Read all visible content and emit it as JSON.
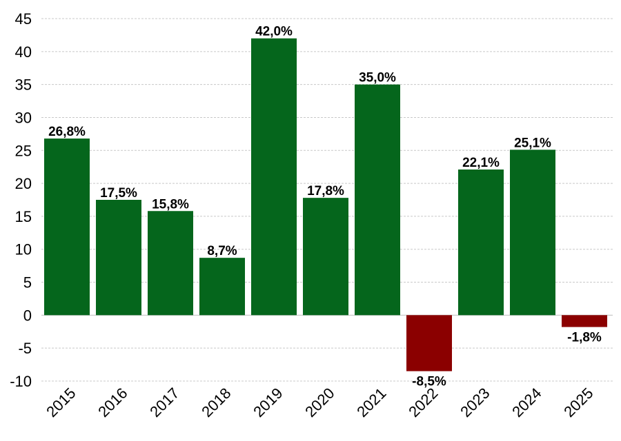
{
  "chart_data": {
    "type": "bar",
    "categories": [
      "2015",
      "2016",
      "2017",
      "2018",
      "2019",
      "2020",
      "2021",
      "2022",
      "2023",
      "2024",
      "2025"
    ],
    "values": [
      26.8,
      17.5,
      15.8,
      8.7,
      42.0,
      17.8,
      35.0,
      -8.5,
      22.1,
      25.1,
      -1.8
    ],
    "data_labels": [
      "26,8%",
      "17,5%",
      "15,8%",
      "8,7%",
      "42,0%",
      "17,8%",
      "35,0%",
      "-8,5%",
      "22,1%",
      "25,1%",
      "-1,8%"
    ],
    "title": "",
    "xlabel": "",
    "ylabel": "",
    "ylim": [
      -10,
      45
    ],
    "yticks": [
      45,
      40,
      35,
      30,
      25,
      20,
      15,
      10,
      5,
      0,
      -5,
      -10
    ],
    "grid": true,
    "colors": {
      "positive": "#05661c",
      "negative": "#8b0000"
    }
  }
}
